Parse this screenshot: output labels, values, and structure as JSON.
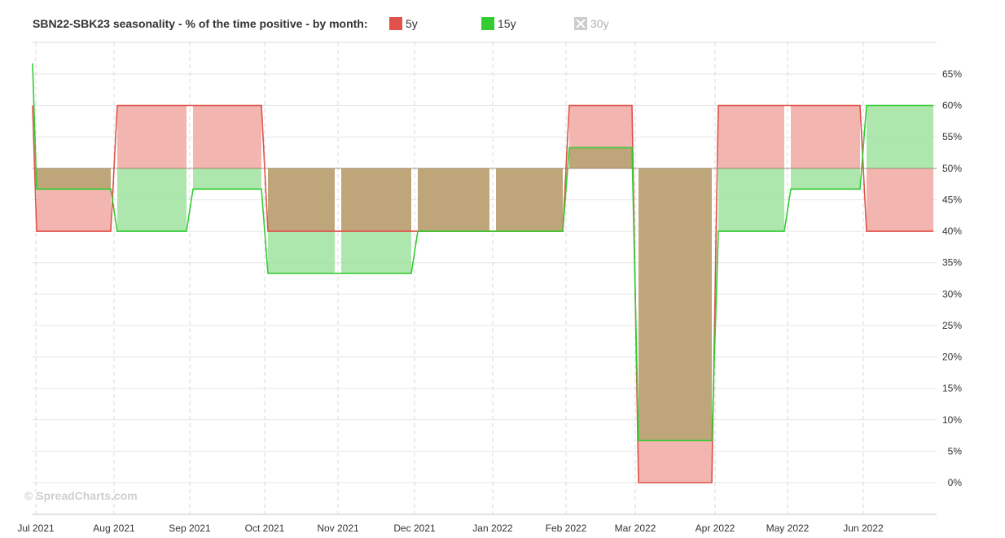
{
  "title": "SBN22-SBK23 seasonality - % of the time positive - by month:",
  "legend": [
    {
      "label": "5y",
      "color": "#e0524a",
      "enabled": true
    },
    {
      "label": "15y",
      "color": "#33cc33",
      "enabled": true
    },
    {
      "label": "30y",
      "color": "#cccccc",
      "enabled": false
    }
  ],
  "watermark": "© SpreadCharts.com",
  "chart_data": {
    "type": "area",
    "x_tick_labels": [
      "Jul 2021",
      "Aug 2021",
      "Sep 2021",
      "Oct 2021",
      "Nov 2021",
      "Dec 2021",
      "Jan 2022",
      "Feb 2022",
      "Mar 2022",
      "Apr 2022",
      "May 2022",
      "Jun 2022"
    ],
    "y_tick_labels": [
      "0%",
      "5%",
      "10%",
      "15%",
      "20%",
      "25%",
      "30%",
      "35%",
      "40%",
      "45%",
      "50%",
      "55%",
      "60%",
      "65%"
    ],
    "ylim": [
      -5,
      70
    ],
    "baseline": 50,
    "y_axis_position": "right",
    "grid": true,
    "legend_position": "top",
    "series": [
      {
        "name": "5y",
        "color": "#e0524a",
        "fill": "#f0a8a2",
        "values": [
          40,
          60,
          60,
          40,
          40,
          40,
          40,
          60,
          0,
          60,
          60,
          40
        ]
      },
      {
        "name": "15y",
        "color": "#33cc33",
        "fill": "#9fe39f",
        "values": [
          46.7,
          40,
          46.7,
          33.3,
          33.3,
          40,
          40,
          53.3,
          6.7,
          40,
          46.7,
          60
        ]
      }
    ]
  }
}
